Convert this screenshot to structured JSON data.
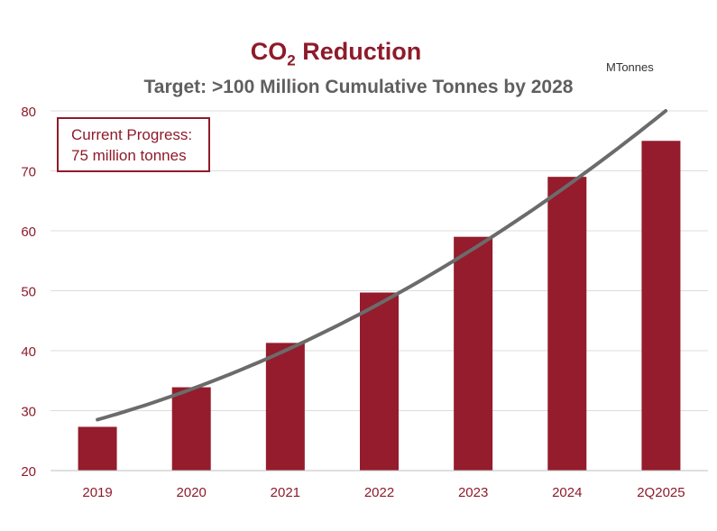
{
  "header": {
    "title_main": "CO",
    "title_sub": "2",
    "title_rest": " Reduction",
    "subtitle": "Target: >100 Million Cumulative Tonnes by 2028",
    "units": "MTonnes"
  },
  "callout": {
    "line1": "Current Progress:",
    "line2": "75 million tonnes"
  },
  "colors": {
    "bar": "#941c2c",
    "trend": "#6b6b6b",
    "axis_text": "#8e1b2a",
    "grid": "#dcdcdc"
  },
  "chart_data": {
    "type": "bar",
    "title": "CO2 Reduction",
    "subtitle": "Target: >100 Million Cumulative Tonnes by 2028",
    "categories": [
      "2019",
      "2020",
      "2021",
      "2022",
      "2023",
      "2024",
      "2Q2025"
    ],
    "series": [
      {
        "values": [
          27.3,
          33.9,
          41.3,
          49.7,
          59.0,
          69.0,
          75.0
        ]
      }
    ],
    "trend_line": {
      "type": "curve",
      "x_start": "2019",
      "y_start": 28.5,
      "y_at_2024": 67.5,
      "y_end": 80
    },
    "ylim": [
      20,
      80
    ],
    "yticks": [
      20,
      30,
      40,
      50,
      60,
      70,
      80
    ],
    "grid": true,
    "units": "MTonnes"
  }
}
